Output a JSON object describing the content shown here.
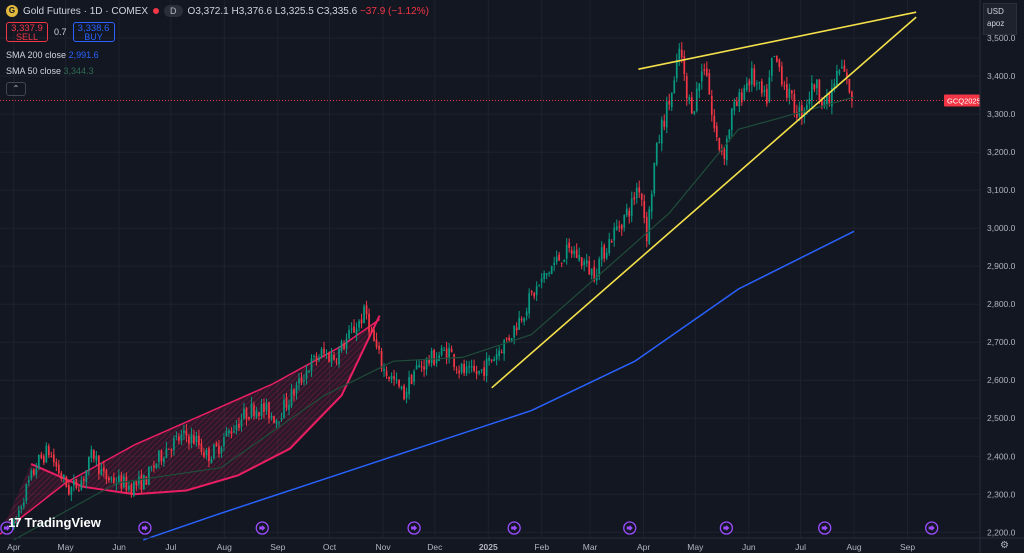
{
  "header": {
    "symbol_icon": "gold-coin-icon",
    "title": "Gold Futures · 1D · COMEX",
    "status_icon": "market-closed-dot-icon",
    "currency_badge": "D",
    "ohlc": {
      "o_label": "O",
      "o": "3,372.1",
      "h_label": "H",
      "h": "3,376.6",
      "l_label": "L",
      "l": "3,325.5",
      "c_label": "C",
      "c": "3,335.6",
      "change": "−37.9 (−1.12%)"
    }
  },
  "trade": {
    "sell_value": "3,337.9",
    "sell_label": "SELL",
    "spread": "0.7",
    "buy_value": "3,338.6",
    "buy_label": "BUY"
  },
  "indicators": [
    {
      "name": "SMA 200 close",
      "value": "2,991.6",
      "color": "#2962ff"
    },
    {
      "name": "SMA 50 close",
      "value": "3,344.3",
      "color": "#1f4d3a"
    }
  ],
  "collapse_icon": "chevron-up-icon",
  "currency_menu": {
    "line1": "USD",
    "line2": "apoz"
  },
  "brand": {
    "name": "TradingView",
    "icon": "tv-logo-icon"
  },
  "settings_icon": "gear-icon",
  "colors": {
    "up": "#089981",
    "down": "#f23645",
    "background": "#131722",
    "sma200": "#2962ff",
    "sma50": "#1f4d3a",
    "trendline": "#f5e14a",
    "arc_pattern": "#e91e63",
    "last_price": "#f23645"
  },
  "chart_data": {
    "type": "candlestick",
    "symbol": "GCQ2025",
    "last_price": 3335.6,
    "y_axis": {
      "ticks": [
        2200,
        2300,
        2400,
        2500,
        2600,
        2700,
        2800,
        2900,
        3000,
        3100,
        3200,
        3300,
        3400,
        3500
      ],
      "tick_labels": [
        "2,200.0",
        "2,300.0",
        "2,400.0",
        "2,500.0",
        "2,600.0",
        "2,700.0",
        "2,800.0",
        "2,900.0",
        "3,000.0",
        "3,100.0",
        "3,200.0",
        "3,300.0",
        "3,400.0",
        "3,500.0"
      ],
      "range": [
        2185,
        3600
      ]
    },
    "x_axis": {
      "labels": [
        "Apr",
        "May",
        "Jun",
        "Jul",
        "Aug",
        "Sep",
        "Oct",
        "Nov",
        "Dec",
        "2025",
        "Feb",
        "Mar",
        "Apr",
        "May",
        "Jun",
        "Jul",
        "Aug",
        "Sep"
      ],
      "label_days": [
        0,
        30,
        61,
        91,
        122,
        153,
        183,
        214,
        244,
        275,
        306,
        334,
        365,
        395,
        426,
        456,
        487,
        518
      ],
      "range_days": [
        -8,
        560
      ]
    },
    "price_path": [
      [
        -8,
        2160
      ],
      [
        0,
        2215
      ],
      [
        6,
        2300
      ],
      [
        14,
        2385
      ],
      [
        20,
        2415
      ],
      [
        26,
        2360
      ],
      [
        32,
        2310
      ],
      [
        40,
        2340
      ],
      [
        46,
        2410
      ],
      [
        52,
        2345
      ],
      [
        60,
        2335
      ],
      [
        68,
        2320
      ],
      [
        76,
        2335
      ],
      [
        82,
        2380
      ],
      [
        88,
        2420
      ],
      [
        94,
        2440
      ],
      [
        100,
        2455
      ],
      [
        106,
        2440
      ],
      [
        112,
        2400
      ],
      [
        118,
        2420
      ],
      [
        122,
        2450
      ],
      [
        128,
        2480
      ],
      [
        134,
        2510
      ],
      [
        140,
        2530
      ],
      [
        146,
        2520
      ],
      [
        152,
        2500
      ],
      [
        158,
        2540
      ],
      [
        164,
        2580
      ],
      [
        170,
        2630
      ],
      [
        178,
        2670
      ],
      [
        186,
        2660
      ],
      [
        192,
        2700
      ],
      [
        198,
        2740
      ],
      [
        204,
        2780
      ],
      [
        208,
        2710
      ],
      [
        214,
        2630
      ],
      [
        220,
        2600
      ],
      [
        226,
        2560
      ],
      [
        232,
        2625
      ],
      [
        240,
        2650
      ],
      [
        246,
        2665
      ],
      [
        252,
        2680
      ],
      [
        258,
        2630
      ],
      [
        264,
        2615
      ],
      [
        270,
        2620
      ],
      [
        276,
        2650
      ],
      [
        282,
        2685
      ],
      [
        288,
        2720
      ],
      [
        294,
        2770
      ],
      [
        300,
        2820
      ],
      [
        306,
        2860
      ],
      [
        312,
        2900
      ],
      [
        318,
        2930
      ],
      [
        324,
        2940
      ],
      [
        330,
        2910
      ],
      [
        336,
        2880
      ],
      [
        342,
        2940
      ],
      [
        348,
        2990
      ],
      [
        354,
        3030
      ],
      [
        358,
        3060
      ],
      [
        362,
        3120
      ],
      [
        364,
        3080
      ],
      [
        367,
        2980
      ],
      [
        371,
        3160
      ],
      [
        375,
        3260
      ],
      [
        379,
        3320
      ],
      [
        383,
        3380
      ],
      [
        386,
        3480
      ],
      [
        390,
        3340
      ],
      [
        394,
        3320
      ],
      [
        398,
        3400
      ],
      [
        401,
        3440
      ],
      [
        405,
        3280
      ],
      [
        408,
        3220
      ],
      [
        412,
        3200
      ],
      [
        416,
        3300
      ],
      [
        420,
        3330
      ],
      [
        424,
        3380
      ],
      [
        428,
        3400
      ],
      [
        432,
        3360
      ],
      [
        436,
        3330
      ],
      [
        440,
        3450
      ],
      [
        444,
        3420
      ],
      [
        448,
        3360
      ],
      [
        452,
        3320
      ],
      [
        456,
        3300
      ],
      [
        460,
        3340
      ],
      [
        464,
        3380
      ],
      [
        468,
        3350
      ],
      [
        472,
        3320
      ],
      [
        476,
        3390
      ],
      [
        480,
        3420
      ],
      [
        484,
        3370
      ],
      [
        487,
        3335.6
      ]
    ],
    "sma200": [
      [
        75,
        2180
      ],
      [
        120,
        2250
      ],
      [
        180,
        2340
      ],
      [
        240,
        2430
      ],
      [
        300,
        2520
      ],
      [
        360,
        2650
      ],
      [
        420,
        2840
      ],
      [
        487,
        2991.6
      ]
    ],
    "sma50": [
      [
        0,
        2180
      ],
      [
        60,
        2330
      ],
      [
        120,
        2370
      ],
      [
        180,
        2560
      ],
      [
        220,
        2650
      ],
      [
        260,
        2660
      ],
      [
        300,
        2720
      ],
      [
        340,
        2880
      ],
      [
        380,
        3040
      ],
      [
        420,
        3260
      ],
      [
        460,
        3310
      ],
      [
        487,
        3344.3
      ]
    ],
    "trendlines": [
      [
        [
          277,
          2580
        ],
        [
          523,
          3555
        ]
      ],
      [
        [
          362,
          3418
        ],
        [
          523,
          3568
        ]
      ]
    ],
    "arc_pattern": {
      "upper": [
        [
          -8,
          2195
        ],
        [
          30,
          2330
        ],
        [
          70,
          2430
        ],
        [
          110,
          2510
        ],
        [
          150,
          2590
        ],
        [
          190,
          2690
        ],
        [
          212,
          2760
        ]
      ],
      "lower": [
        [
          10,
          2380
        ],
        [
          40,
          2320
        ],
        [
          70,
          2300
        ],
        [
          100,
          2310
        ],
        [
          130,
          2350
        ],
        [
          160,
          2420
        ],
        [
          190,
          2560
        ],
        [
          212,
          2770
        ]
      ]
    },
    "event_markers_days": [
      -4,
      76,
      144,
      232,
      290,
      357,
      413,
      470,
      532
    ]
  }
}
